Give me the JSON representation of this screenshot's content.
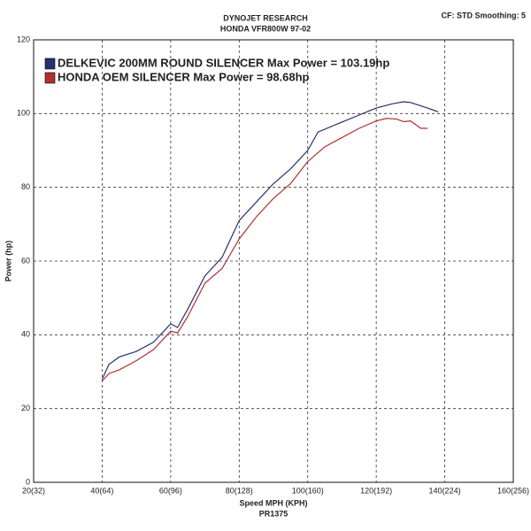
{
  "chart_data": {
    "type": "line",
    "title": "DYNOJET RESEARCH",
    "subtitle": "HONDA VFR800W 97-02",
    "annotations": [
      "CF: STD  Smoothing: 5",
      "PR1375"
    ],
    "x_label": "Speed MPH (KPH)",
    "y_label": "Power (hp)",
    "xlim": [
      20,
      160
    ],
    "ylim": [
      0,
      120
    ],
    "xticks": [
      {
        "value": 20,
        "label": "20(32)"
      },
      {
        "value": 40,
        "label": "40(64)"
      },
      {
        "value": 60,
        "label": "60(96)"
      },
      {
        "value": 80,
        "label": "80(128)"
      },
      {
        "value": 100,
        "label": "100(160)"
      },
      {
        "value": 120,
        "label": "120(192)"
      },
      {
        "value": 140,
        "label": "140(224)"
      },
      {
        "value": 160,
        "label": "160(256)"
      }
    ],
    "yticks": [
      0,
      20,
      40,
      60,
      80,
      100,
      120
    ],
    "grid": true,
    "legend": "upper left",
    "series": [
      {
        "name": "DELKEVIC 200MM ROUND SILENCER Max Power = 103.19hp",
        "color": "#2a2f6e",
        "x": [
          40,
          42,
          45,
          50,
          55,
          60,
          62,
          65,
          70,
          75,
          80,
          85,
          90,
          95,
          100,
          103,
          110,
          115,
          120,
          125,
          128,
          130,
          135,
          138
        ],
        "values": [
          28,
          32,
          34,
          35.5,
          38,
          43,
          42,
          47,
          56,
          61,
          71,
          76,
          81,
          85,
          90,
          95,
          97.7,
          99.6,
          101.5,
          102.7,
          103.2,
          103,
          101.5,
          100.5
        ]
      },
      {
        "name": "HONDA OEM SILENCER Max Power = 98.68hp",
        "color": "#b03030",
        "x": [
          40,
          42,
          45,
          50,
          55,
          60,
          62,
          65,
          70,
          75,
          80,
          85,
          90,
          95,
          100,
          105,
          110,
          115,
          120,
          123,
          126,
          128,
          130,
          133,
          135
        ],
        "values": [
          27.5,
          29.5,
          30.5,
          33,
          36,
          41,
          40.5,
          45,
          54,
          58,
          66,
          72,
          77,
          81,
          87,
          91,
          93.5,
          96,
          98,
          98.7,
          98.5,
          97.8,
          98,
          96,
          96
        ]
      }
    ]
  }
}
